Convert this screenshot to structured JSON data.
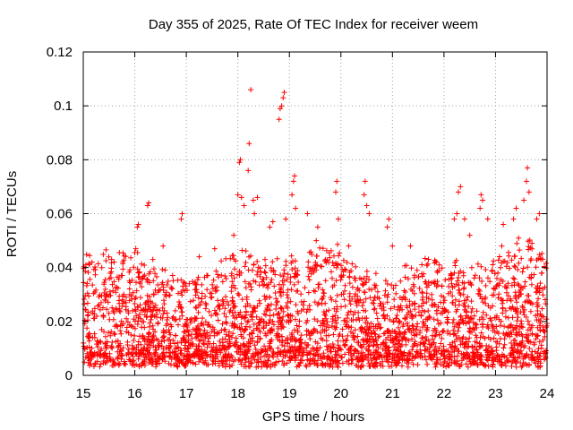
{
  "chart_data": {
    "type": "scatter",
    "title": "Day 355 of 2025, Rate Of TEC Index for receiver weem",
    "xlabel": "GPS time / hours",
    "ylabel": "ROTI / TECUs",
    "xlim": [
      15,
      24
    ],
    "ylim": [
      0,
      0.12
    ],
    "xticks": [
      "15",
      "16",
      "17",
      "18",
      "19",
      "20",
      "21",
      "22",
      "23",
      "24"
    ],
    "yticks": [
      "0",
      "0.02",
      "0.04",
      "0.06",
      "0.08",
      "0.1",
      "0.12"
    ],
    "grid": true,
    "marker": "+",
    "series": [
      {
        "name": "ROTI",
        "color": "#ff0000",
        "background": {
          "n": 3200,
          "typical_range": [
            0.005,
            0.045
          ],
          "median": 0.018
        },
        "points": [
          {
            "x": 15.05,
            "y": 0.041
          },
          {
            "x": 15.55,
            "y": 0.043
          },
          {
            "x": 15.6,
            "y": 0.042
          },
          {
            "x": 16.02,
            "y": 0.047
          },
          {
            "x": 16.05,
            "y": 0.055
          },
          {
            "x": 16.07,
            "y": 0.056
          },
          {
            "x": 16.25,
            "y": 0.063
          },
          {
            "x": 16.27,
            "y": 0.064
          },
          {
            "x": 16.35,
            "y": 0.043
          },
          {
            "x": 16.55,
            "y": 0.048
          },
          {
            "x": 16.9,
            "y": 0.058
          },
          {
            "x": 16.92,
            "y": 0.06
          },
          {
            "x": 17.25,
            "y": 0.044
          },
          {
            "x": 17.55,
            "y": 0.047
          },
          {
            "x": 17.92,
            "y": 0.052
          },
          {
            "x": 18.0,
            "y": 0.067
          },
          {
            "x": 18.03,
            "y": 0.079
          },
          {
            "x": 18.05,
            "y": 0.08
          },
          {
            "x": 18.07,
            "y": 0.066
          },
          {
            "x": 18.12,
            "y": 0.063
          },
          {
            "x": 18.2,
            "y": 0.076
          },
          {
            "x": 18.22,
            "y": 0.086
          },
          {
            "x": 18.25,
            "y": 0.106
          },
          {
            "x": 18.3,
            "y": 0.065
          },
          {
            "x": 18.32,
            "y": 0.06
          },
          {
            "x": 18.38,
            "y": 0.066
          },
          {
            "x": 18.62,
            "y": 0.055
          },
          {
            "x": 18.68,
            "y": 0.057
          },
          {
            "x": 18.8,
            "y": 0.095
          },
          {
            "x": 18.82,
            "y": 0.099
          },
          {
            "x": 18.85,
            "y": 0.1
          },
          {
            "x": 18.88,
            "y": 0.103
          },
          {
            "x": 18.9,
            "y": 0.105
          },
          {
            "x": 18.93,
            "y": 0.058
          },
          {
            "x": 19.05,
            "y": 0.067
          },
          {
            "x": 19.08,
            "y": 0.072
          },
          {
            "x": 19.1,
            "y": 0.074
          },
          {
            "x": 19.12,
            "y": 0.062
          },
          {
            "x": 19.35,
            "y": 0.06
          },
          {
            "x": 19.52,
            "y": 0.05
          },
          {
            "x": 19.55,
            "y": 0.055
          },
          {
            "x": 19.9,
            "y": 0.068
          },
          {
            "x": 19.92,
            "y": 0.072
          },
          {
            "x": 19.95,
            "y": 0.058
          },
          {
            "x": 20.15,
            "y": 0.048
          },
          {
            "x": 20.45,
            "y": 0.067
          },
          {
            "x": 20.47,
            "y": 0.072
          },
          {
            "x": 20.5,
            "y": 0.063
          },
          {
            "x": 20.55,
            "y": 0.06
          },
          {
            "x": 20.9,
            "y": 0.055
          },
          {
            "x": 20.93,
            "y": 0.058
          },
          {
            "x": 21.0,
            "y": 0.048
          },
          {
            "x": 21.35,
            "y": 0.048
          },
          {
            "x": 21.85,
            "y": 0.042
          },
          {
            "x": 22.2,
            "y": 0.058
          },
          {
            "x": 22.25,
            "y": 0.06
          },
          {
            "x": 22.28,
            "y": 0.068
          },
          {
            "x": 22.32,
            "y": 0.07
          },
          {
            "x": 22.4,
            "y": 0.058
          },
          {
            "x": 22.5,
            "y": 0.052
          },
          {
            "x": 22.7,
            "y": 0.062
          },
          {
            "x": 22.72,
            "y": 0.067
          },
          {
            "x": 22.75,
            "y": 0.065
          },
          {
            "x": 22.85,
            "y": 0.058
          },
          {
            "x": 23.15,
            "y": 0.056
          },
          {
            "x": 23.35,
            "y": 0.058
          },
          {
            "x": 23.4,
            "y": 0.062
          },
          {
            "x": 23.55,
            "y": 0.065
          },
          {
            "x": 23.6,
            "y": 0.072
          },
          {
            "x": 23.62,
            "y": 0.077
          },
          {
            "x": 23.65,
            "y": 0.068
          },
          {
            "x": 23.8,
            "y": 0.058
          },
          {
            "x": 23.85,
            "y": 0.06
          },
          {
            "x": 23.95,
            "y": 0.006
          }
        ]
      }
    ]
  }
}
